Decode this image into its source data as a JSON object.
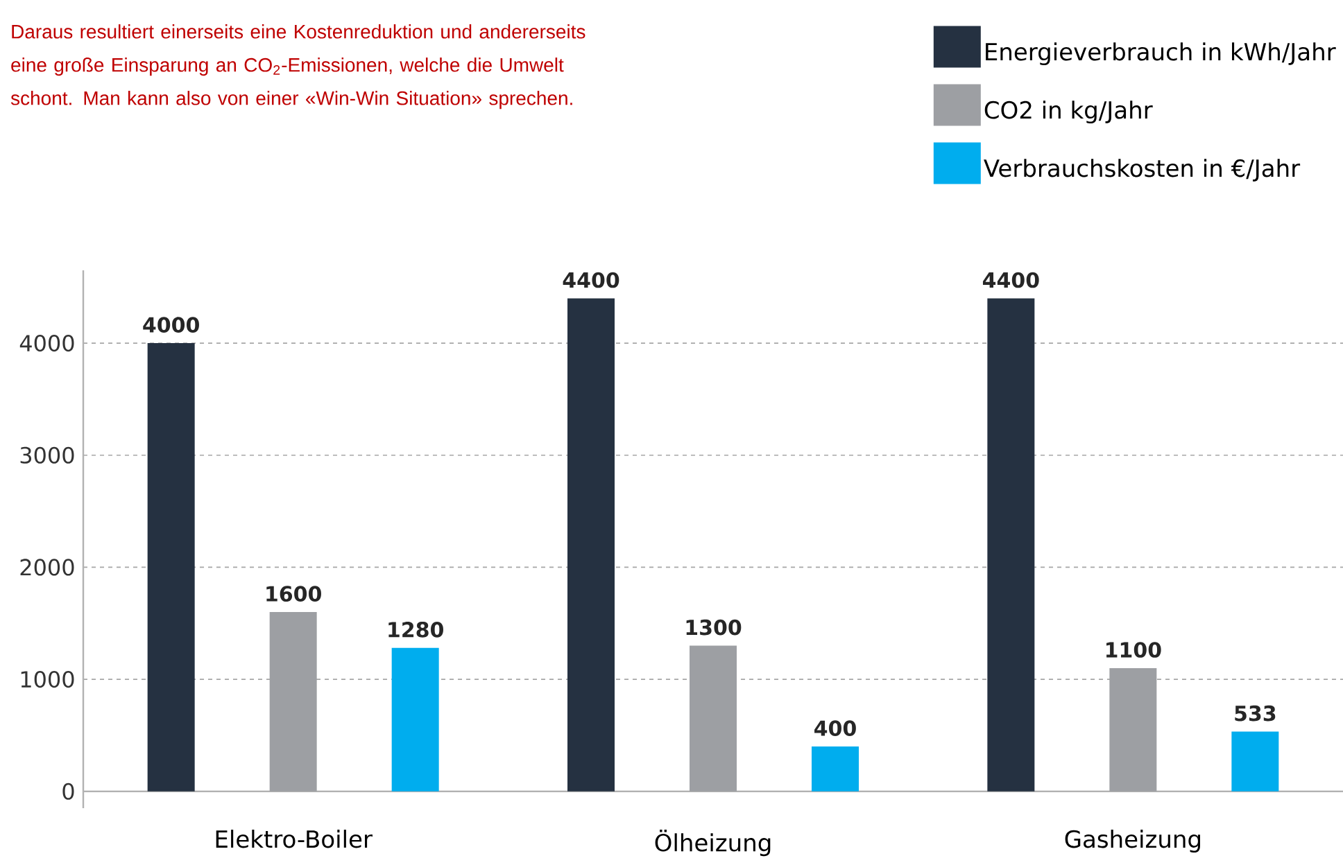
{
  "chart_data": {
    "type": "bar",
    "categories": [
      "Elektro-Boiler",
      "Ölheizung",
      "Gasheizung"
    ],
    "series": [
      {
        "name": "Energieverbrauch in kWh/Jahr",
        "color": "#253141",
        "values": [
          4000,
          4400,
          4400
        ]
      },
      {
        "name": "CO2 in kg/Jahr",
        "color": "#9d9fa3",
        "values": [
          1600,
          1300,
          1100
        ]
      },
      {
        "name": "Verbrauchskosten in €/Jahr",
        "color": "#00adee",
        "values": [
          1280,
          400,
          533
        ]
      }
    ],
    "ylim": [
      -150,
      4650
    ],
    "yticks": [
      0,
      1000,
      2000,
      3000,
      4000
    ],
    "grid": "y",
    "legend": "top right",
    "data_labels": true,
    "annotations": [
      "Daraus resultiert einerseits eine Kostenreduktion und andererseits eine große Einsparung an CO$_{2}$-Emissionen, welche die Umwelt schont. Man kann also von einer «Win-Win Situation» sprechen."
    ]
  }
}
